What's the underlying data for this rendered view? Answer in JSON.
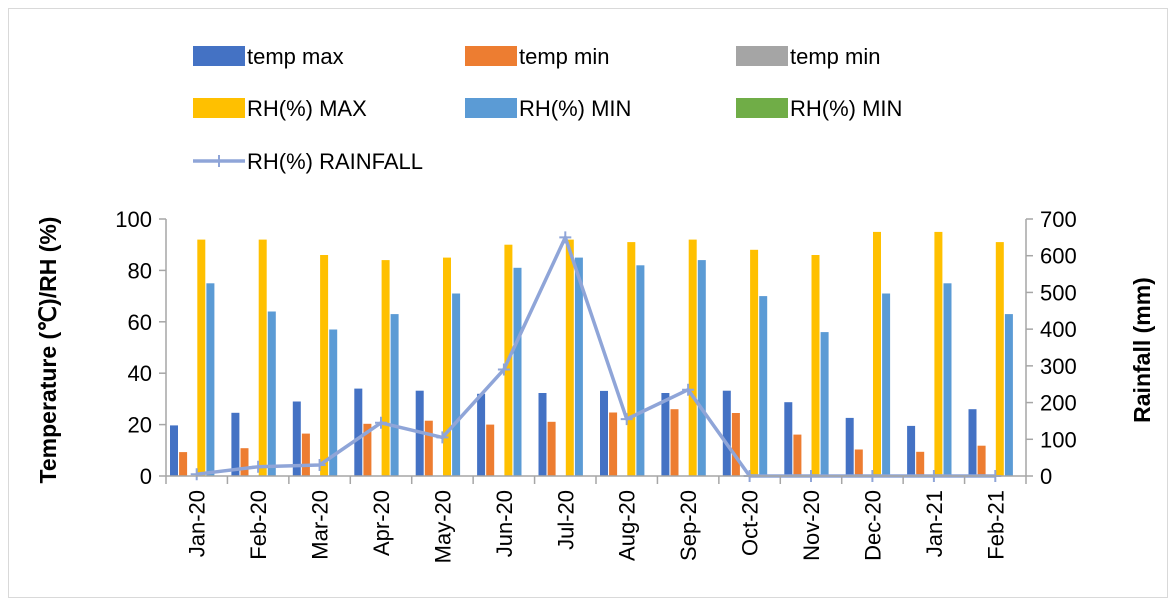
{
  "chart_data": {
    "type": "bar",
    "categories": [
      "Jan-20",
      "Feb-20",
      "Mar-20",
      "Apr-20",
      "May-20",
      "Jun-20",
      "Jul-20",
      "Aug-20",
      "Sep-20",
      "Oct-20",
      "Nov-20",
      "Dec-20",
      "Jan-21",
      "Feb-21"
    ],
    "ylabel": "Temperature (℃)/RH (%)",
    "y2label": "Rainfall (mm)",
    "ylim": [
      0,
      100
    ],
    "y2lim": [
      0,
      700
    ],
    "yticks": [
      "0",
      "20",
      "40",
      "60",
      "80",
      "100"
    ],
    "y2ticks": [
      "0",
      "100",
      "200",
      "300",
      "400",
      "500",
      "600",
      "700"
    ],
    "legend_position": "top",
    "grid": false,
    "series": [
      {
        "name": "temp max",
        "type": "bar",
        "axis": "left",
        "color": "#4472c4",
        "values": [
          19.7,
          24.6,
          29.0,
          34.0,
          33.2,
          32.0,
          32.3,
          33.1,
          32.3,
          33.2,
          28.7,
          22.6,
          19.5,
          26.0
        ]
      },
      {
        "name": "temp min",
        "type": "bar",
        "axis": "left",
        "color": "#ed7d31",
        "values": [
          9.3,
          10.8,
          16.5,
          20.3,
          21.5,
          20.0,
          21.1,
          24.7,
          26.0,
          24.5,
          16.1,
          10.3,
          9.4,
          11.8
        ]
      },
      {
        "name": "temp min",
        "type": "bar",
        "axis": "left",
        "color": "#a5a5a5",
        "values": [
          0,
          0,
          0,
          0,
          0,
          0,
          0,
          0,
          0,
          0,
          0,
          0,
          0,
          0
        ]
      },
      {
        "name": "RH(%) MAX",
        "type": "bar",
        "axis": "left",
        "color": "#ffc000",
        "values": [
          92,
          92,
          86,
          84,
          85,
          90,
          92,
          91,
          92,
          88,
          86,
          95,
          95,
          91
        ]
      },
      {
        "name": "RH(%) MIN",
        "type": "bar",
        "axis": "left",
        "color": "#5b9bd5",
        "values": [
          75,
          64,
          57,
          63,
          71,
          81,
          85,
          82,
          84,
          70,
          56,
          71,
          75,
          63
        ]
      },
      {
        "name": "RH(%) MIN",
        "type": "bar",
        "axis": "left",
        "color": "#70ad47",
        "values": [
          0,
          0,
          0,
          0,
          0,
          0,
          0,
          0,
          0,
          0,
          0,
          0,
          0,
          0
        ]
      },
      {
        "name": "RH(%) RAINFALL",
        "type": "line",
        "axis": "right",
        "color": "#8fa5d8",
        "values": [
          5,
          25,
          30,
          145,
          105,
          290,
          650,
          155,
          235,
          0,
          0,
          0,
          0,
          0
        ]
      }
    ]
  }
}
